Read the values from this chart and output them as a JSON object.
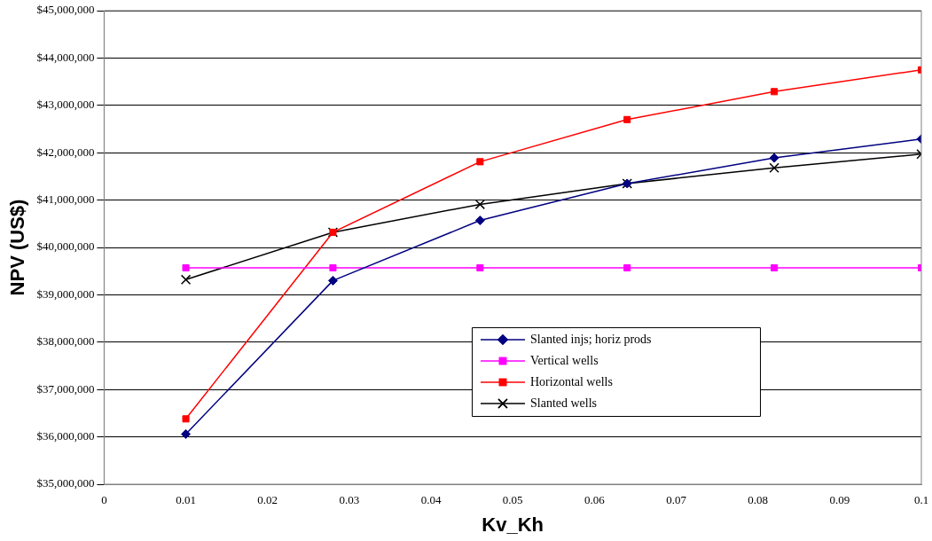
{
  "chart_data": {
    "type": "line",
    "xlabel": "Kv_Kh",
    "ylabel": "NPV (US$)",
    "xlim": [
      0,
      0.1
    ],
    "xticks": [
      0,
      0.01,
      0.02,
      0.03,
      0.04,
      0.05,
      0.06,
      0.07,
      0.08,
      0.09,
      0.1
    ],
    "ylim": [
      35000000,
      45000000
    ],
    "yticks": [
      {
        "value": 35000000,
        "label": "$35,000,000"
      },
      {
        "value": 36000000,
        "label": "$36,000,000"
      },
      {
        "value": 37000000,
        "label": "$37,000,000"
      },
      {
        "value": 38000000,
        "label": "$38,000,000"
      },
      {
        "value": 39000000,
        "label": "$39,000,000"
      },
      {
        "value": 40000000,
        "label": "$40,000,000"
      },
      {
        "value": 41000000,
        "label": "$41,000,000"
      },
      {
        "value": 42000000,
        "label": "$42,000,000"
      },
      {
        "value": 43000000,
        "label": "$43,000,000"
      },
      {
        "value": 44000000,
        "label": "$44,000,000"
      },
      {
        "value": 45000000,
        "label": "$45,000,000"
      }
    ],
    "x": [
      0.01,
      0.028,
      0.046,
      0.064,
      0.082,
      0.1
    ],
    "grid": "y",
    "legend": "bottom right",
    "line_style": "solid",
    "series": [
      {
        "name": "Slanted injs; horiz prods",
        "color": "#000080",
        "marker": "diamond",
        "values": [
          36060000,
          39300000,
          40570000,
          41350000,
          41890000,
          42290000
        ]
      },
      {
        "name": "Vertical wells",
        "color": "#ff00ff",
        "marker": "square",
        "values": [
          39570000,
          39570000,
          39570000,
          39570000,
          39570000,
          39570000
        ]
      },
      {
        "name": "Horizontal wells",
        "color": "#ff0000",
        "marker": "square",
        "values": [
          36380000,
          40320000,
          41810000,
          42700000,
          43290000,
          43750000
        ]
      },
      {
        "name": "Slanted wells",
        "color": "#000000",
        "marker": "cross",
        "values": [
          39320000,
          40320000,
          40910000,
          41350000,
          41680000,
          41970000
        ]
      }
    ]
  }
}
